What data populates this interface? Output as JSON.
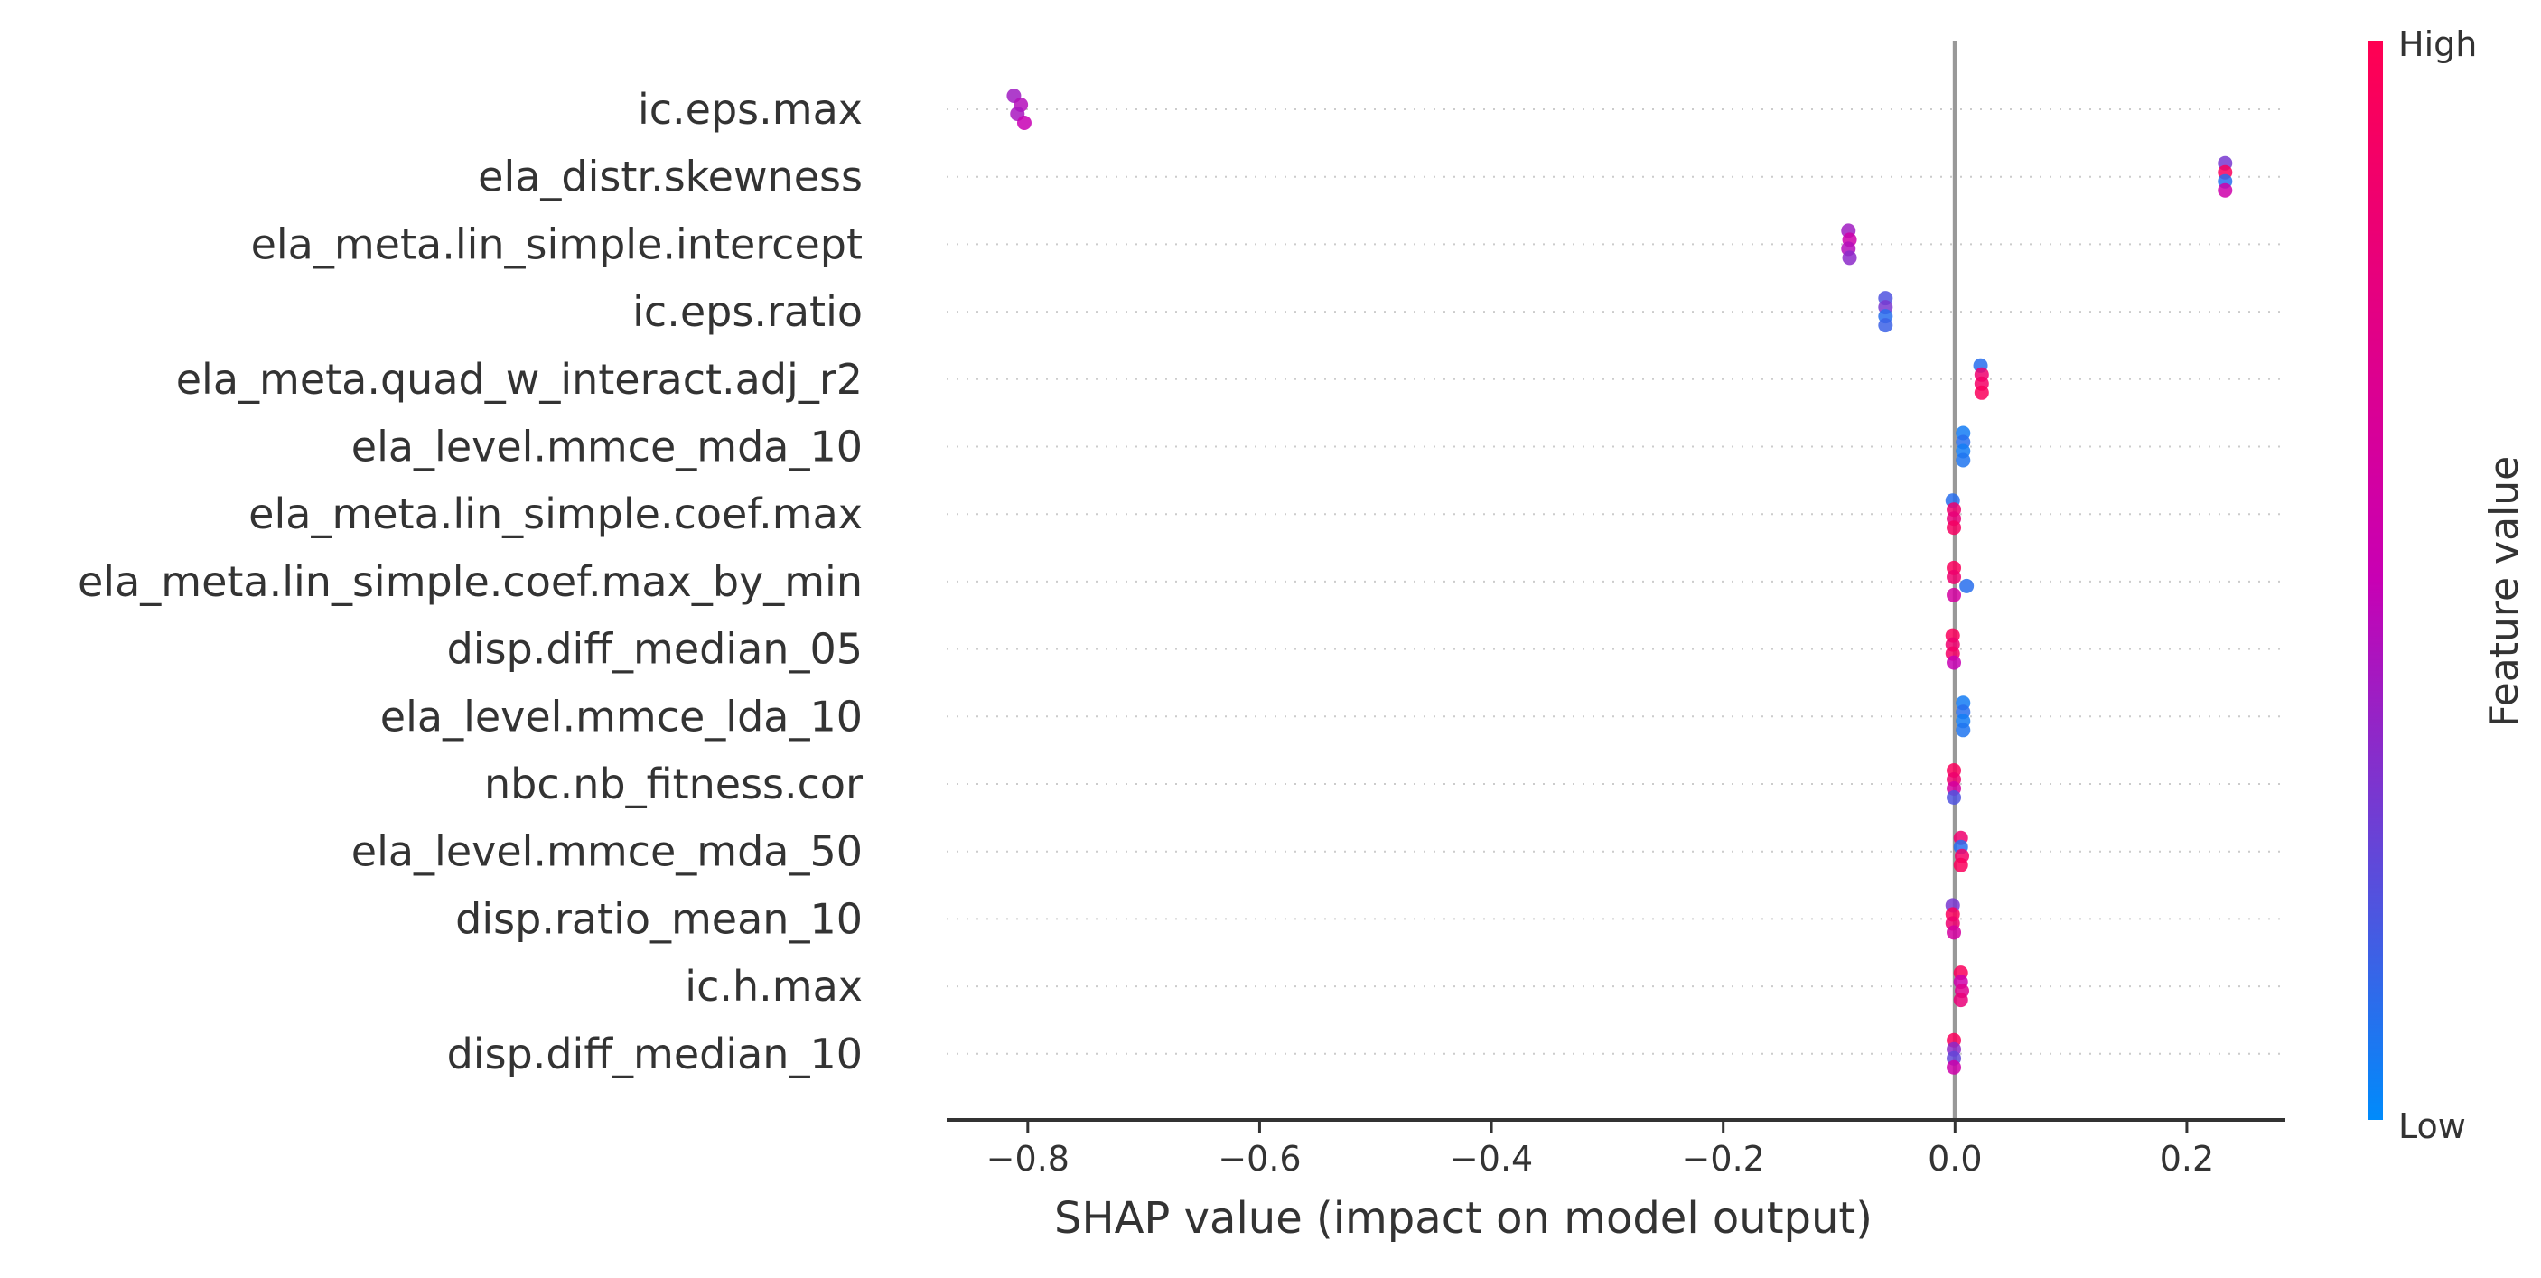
{
  "chart_data": {
    "type": "scatter",
    "subtype": "shap-beeswarm",
    "xlabel": "SHAP value (impact on model output)",
    "xlim": [
      -0.87,
      0.285
    ],
    "xticks": [
      -0.8,
      -0.6,
      -0.4,
      -0.2,
      0.0,
      0.2
    ],
    "xtick_labels": [
      "−0.8",
      "−0.6",
      "−0.4",
      "−0.2",
      "0.0",
      "0.2"
    ],
    "zero_line": 0.0,
    "grid": "dotted horizontal per feature row",
    "colorbar": {
      "label": "Feature value",
      "high_label": "High",
      "low_label": "Low",
      "high_color": "#ff0052",
      "mid_color": "#c800b4",
      "low_color": "#008bfb"
    },
    "features": [
      {
        "name": "ic.eps.max",
        "points": [
          {
            "x": -0.812,
            "c": 0.4
          },
          {
            "x": -0.806,
            "c": 0.45
          },
          {
            "x": -0.809,
            "c": 0.42
          },
          {
            "x": -0.803,
            "c": 0.5
          }
        ]
      },
      {
        "name": "ela_distr.skewness",
        "points": [
          {
            "x": 0.233,
            "c": 0.3
          },
          {
            "x": 0.233,
            "c": 0.95
          },
          {
            "x": 0.233,
            "c": 0.1
          },
          {
            "x": 0.233,
            "c": 0.55
          }
        ]
      },
      {
        "name": "ela_meta.lin_simple.intercept",
        "points": [
          {
            "x": -0.092,
            "c": 0.4
          },
          {
            "x": -0.091,
            "c": 0.55
          },
          {
            "x": -0.092,
            "c": 0.45
          },
          {
            "x": -0.091,
            "c": 0.35
          }
        ]
      },
      {
        "name": "ic.eps.ratio",
        "points": [
          {
            "x": -0.06,
            "c": 0.2
          },
          {
            "x": -0.06,
            "c": 0.3
          },
          {
            "x": -0.06,
            "c": 0.1
          },
          {
            "x": -0.06,
            "c": 0.15
          }
        ]
      },
      {
        "name": "ela_meta.quad_w_interact.adj_r2",
        "points": [
          {
            "x": 0.022,
            "c": 0.1
          },
          {
            "x": 0.023,
            "c": 0.85
          },
          {
            "x": 0.023,
            "c": 0.9
          },
          {
            "x": 0.023,
            "c": 0.95
          }
        ]
      },
      {
        "name": "ela_level.mmce_mda_10",
        "points": [
          {
            "x": 0.007,
            "c": 0.05
          },
          {
            "x": 0.007,
            "c": 0.1
          },
          {
            "x": 0.007,
            "c": 0.05
          },
          {
            "x": 0.007,
            "c": 0.08
          }
        ]
      },
      {
        "name": "ela_meta.lin_simple.coef.max",
        "points": [
          {
            "x": -0.002,
            "c": 0.1
          },
          {
            "x": -0.001,
            "c": 0.85
          },
          {
            "x": -0.001,
            "c": 0.8
          },
          {
            "x": -0.001,
            "c": 0.92
          }
        ]
      },
      {
        "name": "ela_meta.lin_simple.coef.max_by_min",
        "points": [
          {
            "x": -0.001,
            "c": 0.95
          },
          {
            "x": -0.001,
            "c": 0.85
          },
          {
            "x": 0.01,
            "c": 0.1
          },
          {
            "x": -0.001,
            "c": 0.6
          }
        ]
      },
      {
        "name": "disp.diff_median_05",
        "points": [
          {
            "x": -0.002,
            "c": 0.95
          },
          {
            "x": -0.002,
            "c": 0.85
          },
          {
            "x": -0.002,
            "c": 0.9
          },
          {
            "x": -0.001,
            "c": 0.5
          }
        ]
      },
      {
        "name": "ela_level.mmce_lda_10",
        "points": [
          {
            "x": 0.007,
            "c": 0.05
          },
          {
            "x": 0.007,
            "c": 0.1
          },
          {
            "x": 0.007,
            "c": 0.05
          },
          {
            "x": 0.007,
            "c": 0.08
          }
        ]
      },
      {
        "name": "nbc.nb_fitness.cor",
        "points": [
          {
            "x": -0.001,
            "c": 0.95
          },
          {
            "x": -0.001,
            "c": 0.85
          },
          {
            "x": -0.001,
            "c": 0.6
          },
          {
            "x": -0.001,
            "c": 0.2
          }
        ]
      },
      {
        "name": "ela_level.mmce_mda_50",
        "points": [
          {
            "x": 0.005,
            "c": 0.85
          },
          {
            "x": 0.005,
            "c": 0.1
          },
          {
            "x": 0.006,
            "c": 0.9
          },
          {
            "x": 0.005,
            "c": 0.95
          }
        ]
      },
      {
        "name": "disp.ratio_mean_10",
        "points": [
          {
            "x": -0.002,
            "c": 0.3
          },
          {
            "x": -0.002,
            "c": 0.95
          },
          {
            "x": -0.002,
            "c": 0.85
          },
          {
            "x": -0.001,
            "c": 0.6
          }
        ]
      },
      {
        "name": "ic.h.max",
        "points": [
          {
            "x": 0.005,
            "c": 0.95
          },
          {
            "x": 0.005,
            "c": 0.55
          },
          {
            "x": 0.006,
            "c": 0.7
          },
          {
            "x": 0.005,
            "c": 0.8
          }
        ]
      },
      {
        "name": "disp.diff_median_10",
        "points": [
          {
            "x": -0.001,
            "c": 0.95
          },
          {
            "x": -0.001,
            "c": 0.35
          },
          {
            "x": -0.001,
            "c": 0.25
          },
          {
            "x": -0.001,
            "c": 0.55
          }
        ]
      }
    ]
  }
}
